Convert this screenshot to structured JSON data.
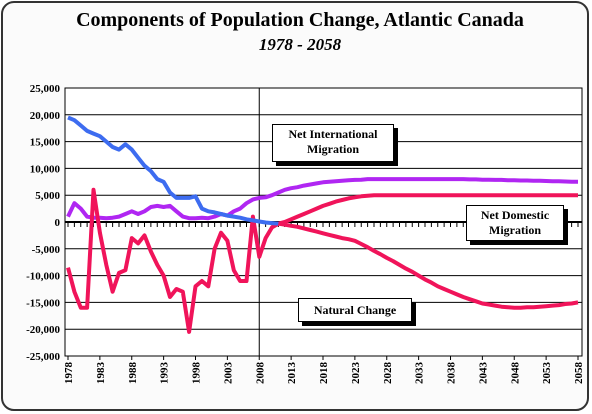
{
  "chart_data": {
    "type": "line",
    "title": "Components of Population Change, Atlantic Canada",
    "subtitle": "1978 - 2058",
    "x": [
      1978,
      1979,
      1980,
      1981,
      1982,
      1983,
      1984,
      1985,
      1986,
      1987,
      1988,
      1989,
      1990,
      1991,
      1992,
      1993,
      1994,
      1995,
      1996,
      1997,
      1998,
      1999,
      2000,
      2001,
      2002,
      2003,
      2004,
      2005,
      2006,
      2007,
      2008,
      2009,
      2010,
      2011,
      2012,
      2013,
      2014,
      2015,
      2016,
      2017,
      2018,
      2019,
      2020,
      2021,
      2022,
      2023,
      2024,
      2025,
      2026,
      2027,
      2028,
      2029,
      2030,
      2031,
      2032,
      2033,
      2034,
      2035,
      2036,
      2037,
      2038,
      2039,
      2040,
      2041,
      2042,
      2043,
      2044,
      2045,
      2046,
      2047,
      2048,
      2049,
      2050,
      2051,
      2052,
      2053,
      2054,
      2055,
      2056,
      2057,
      2058
    ],
    "xlim": [
      1978,
      2058
    ],
    "xticks": [
      1978,
      1983,
      1988,
      1993,
      1998,
      2003,
      2008,
      2013,
      2018,
      2023,
      2028,
      2033,
      2038,
      2043,
      2048,
      2053,
      2058
    ],
    "ylim": [
      -25000,
      25000
    ],
    "yticks": [
      {
        "value": 25000,
        "label": "25,000"
      },
      {
        "value": 20000,
        "label": "20,000"
      },
      {
        "value": 15000,
        "label": "15,000"
      },
      {
        "value": 10000,
        "label": "10,000"
      },
      {
        "value": 5000,
        "label": "5,000"
      },
      0,
      {
        "value": -5000,
        "label": "-5,000"
      },
      {
        "value": -10000,
        "label": "-10,000"
      },
      {
        "value": -15000,
        "label": "-15,000"
      },
      {
        "value": -20000,
        "label": "-20,000"
      },
      {
        "value": -25000,
        "label": "-25,000"
      }
    ],
    "grid": true,
    "vline": 2008,
    "series": [
      {
        "name": "Net International Migration",
        "color": "#b026f2",
        "values": [
          1000,
          3500,
          2500,
          1000,
          800,
          800,
          700,
          800,
          1000,
          1500,
          2000,
          1500,
          2000,
          2800,
          3000,
          2800,
          3000,
          2000,
          1000,
          700,
          700,
          800,
          700,
          1000,
          1500,
          1200,
          2000,
          2500,
          3500,
          4200,
          4500,
          4600,
          5000,
          5500,
          6000,
          6300,
          6500,
          6800,
          7000,
          7200,
          7400,
          7500,
          7600,
          7700,
          7800,
          7850,
          7900,
          8000,
          8000,
          8000,
          8000,
          8000,
          8000,
          8000,
          8000,
          8000,
          8000,
          8000,
          8000,
          8000,
          8000,
          8000,
          8000,
          7950,
          7950,
          7900,
          7900,
          7850,
          7850,
          7800,
          7800,
          7750,
          7750,
          7700,
          7700,
          7650,
          7600,
          7600,
          7550,
          7500,
          7500
        ]
      },
      {
        "name": "Net Domestic Migration",
        "color": "#f0145a",
        "values": [
          -8500,
          -13000,
          -16000,
          -16000,
          6000,
          -2000,
          -8000,
          -13000,
          -9500,
          -9000,
          -3000,
          -4000,
          -2500,
          -5500,
          -8000,
          -10000,
          -14000,
          -12500,
          -13000,
          -20500,
          -12000,
          -11000,
          -12000,
          -5000,
          -2000,
          -3500,
          -9000,
          -11000,
          -11000,
          1000,
          -6500,
          -3000,
          -1000,
          -300,
          0,
          500,
          1000,
          1500,
          2000,
          2500,
          3000,
          3400,
          3800,
          4100,
          4400,
          4600,
          4800,
          4900,
          5000,
          5000,
          5000,
          5000,
          5000,
          5000,
          5000,
          5000,
          5000,
          5000,
          5000,
          5000,
          5000,
          5000,
          5000,
          5000,
          5000,
          5000,
          5000,
          5000,
          5000,
          5000,
          5000,
          5000,
          5000,
          5000,
          5000,
          5000,
          5000,
          5000,
          5000,
          5000,
          5000
        ]
      },
      {
        "name": "Natural Change",
        "color": "#f0145a",
        "segments": [
          {
            "x_from": 1978,
            "x_to": 2011,
            "color": "#3d6cf0"
          },
          {
            "x_from": 2011,
            "x_to": 2058,
            "color": "#f0145a"
          }
        ],
        "values": [
          19500,
          19000,
          18000,
          17000,
          16500,
          16000,
          15000,
          14000,
          13500,
          14500,
          13500,
          12000,
          10500,
          9500,
          8000,
          7500,
          5500,
          4500,
          4500,
          4500,
          4800,
          2500,
          2000,
          1800,
          1500,
          1200,
          1000,
          800,
          500,
          300,
          100,
          -100,
          -200,
          -300,
          -500,
          -700,
          -900,
          -1200,
          -1500,
          -1800,
          -2100,
          -2400,
          -2700,
          -3000,
          -3200,
          -3500,
          -4100,
          -4700,
          -5400,
          -6000,
          -6700,
          -7300,
          -8000,
          -8700,
          -9300,
          -10000,
          -10700,
          -11300,
          -12000,
          -12500,
          -13000,
          -13500,
          -14000,
          -14400,
          -14800,
          -15200,
          -15400,
          -15600,
          -15800,
          -15900,
          -16000,
          -16000,
          -15900,
          -15900,
          -15800,
          -15700,
          -15600,
          -15500,
          -15300,
          -15200,
          -15000
        ]
      }
    ]
  }
}
